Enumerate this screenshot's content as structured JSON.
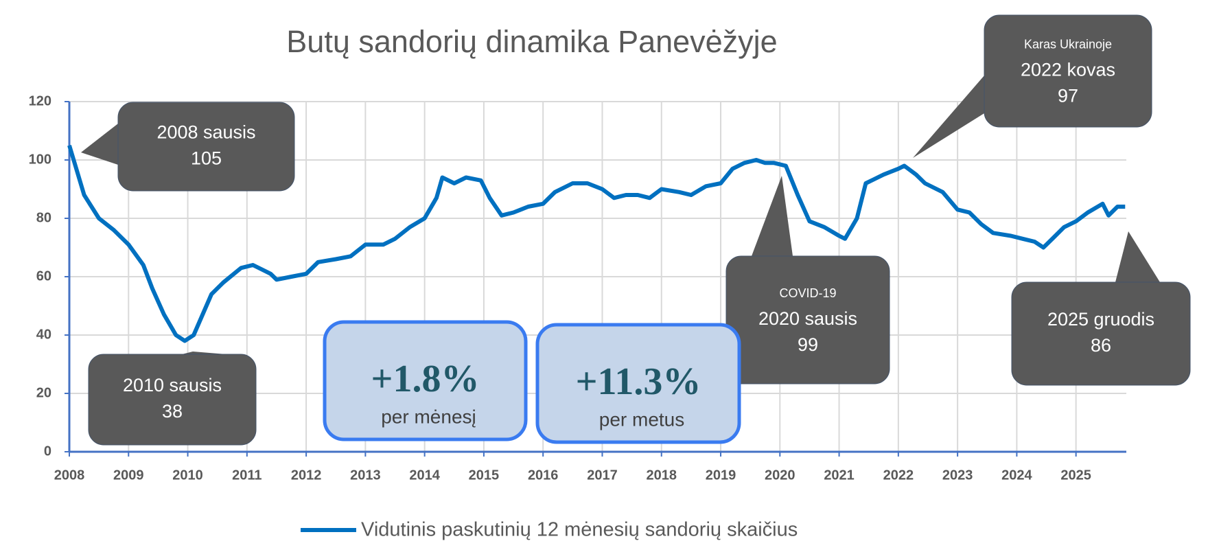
{
  "chart_data": {
    "type": "line",
    "title": "Butų sandorių dinamika Panevėžyje",
    "x": [
      2008.0,
      2008.25,
      2008.5,
      2008.75,
      2009.0,
      2009.25,
      2009.4,
      2009.6,
      2009.8,
      2009.95,
      2010.1,
      2010.4,
      2010.6,
      2010.9,
      2011.1,
      2011.4,
      2011.5,
      2011.75,
      2012.0,
      2012.2,
      2012.5,
      2012.75,
      2013.0,
      2013.3,
      2013.5,
      2013.75,
      2014.0,
      2014.2,
      2014.3,
      2014.5,
      2014.7,
      2014.95,
      2015.1,
      2015.3,
      2015.5,
      2015.75,
      2016.0,
      2016.2,
      2016.5,
      2016.75,
      2017.0,
      2017.2,
      2017.4,
      2017.6,
      2017.8,
      2018.0,
      2018.3,
      2018.5,
      2018.75,
      2019.0,
      2019.2,
      2019.4,
      2019.6,
      2019.75,
      2019.9,
      2020.1,
      2020.3,
      2020.5,
      2020.75,
      2021.0,
      2021.1,
      2021.3,
      2021.45,
      2021.75,
      2022.0,
      2022.1,
      2022.3,
      2022.45,
      2022.75,
      2023.0,
      2023.2,
      2023.4,
      2023.6,
      2023.9,
      2024.1,
      2024.3,
      2024.45,
      2024.6,
      2024.8,
      2025.0,
      2025.2,
      2025.45,
      2025.55,
      2025.7,
      2025.83
    ],
    "series": [
      {
        "name": "Vidutinis paskutinių 12 mėnesių sandorių skaičius",
        "color": "#0070c0",
        "values": [
          105,
          88,
          80,
          76,
          71,
          64,
          56,
          47,
          40,
          38,
          40,
          54,
          58,
          63,
          64,
          61,
          59,
          60,
          61,
          65,
          66,
          67,
          71,
          71,
          73,
          77,
          80,
          87,
          94,
          92,
          94,
          93,
          87,
          81,
          82,
          84,
          85,
          89,
          92,
          92,
          90,
          87,
          88,
          88,
          87,
          90,
          89,
          88,
          91,
          92,
          97,
          99,
          100,
          99,
          99,
          98,
          88,
          79,
          77,
          74,
          73,
          80,
          92,
          95,
          97,
          98,
          95,
          92,
          89,
          83,
          82,
          78,
          75,
          74,
          73,
          72,
          70,
          73,
          77,
          79,
          82,
          85,
          81,
          84,
          84
        ]
      }
    ],
    "xlim": [
      2008,
      2025.85
    ],
    "xticks": [
      2008,
      2009,
      2010,
      2011,
      2012,
      2013,
      2014,
      2015,
      2016,
      2017,
      2018,
      2019,
      2020,
      2021,
      2022,
      2023,
      2024,
      2025
    ],
    "ylim": [
      0,
      120
    ],
    "yticks": [
      0,
      20,
      40,
      60,
      80,
      100,
      120
    ],
    "grid": true,
    "legend": "bottom",
    "annotations": [
      {
        "text": "2008 sausis",
        "value": 105
      },
      {
        "text": "2010 sausis",
        "value": 38
      },
      {
        "note": "Karas Ukrainoje",
        "text": "2022 kovas",
        "value": 97
      },
      {
        "note": "COVID-19",
        "text": "2020 sausis",
        "value": 99
      },
      {
        "text": "2025 gruodis",
        "value": 86
      }
    ],
    "stats": [
      {
        "text": "+1.8%",
        "caption": "per mėnesį"
      },
      {
        "text": "+11.3%",
        "caption": "per metus"
      }
    ]
  }
}
